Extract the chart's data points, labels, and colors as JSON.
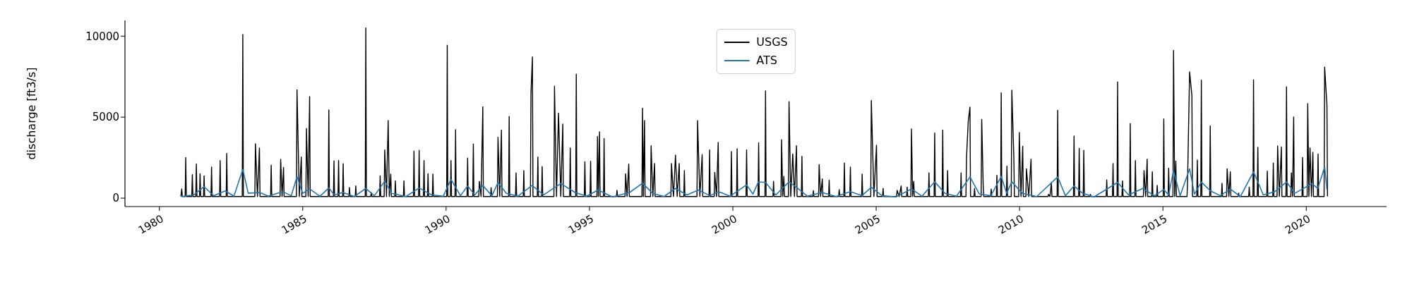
{
  "chart_data": {
    "type": "line",
    "ylabel": "discharge [ft3/s]",
    "xlim": [
      1978.8,
      2022.8
    ],
    "ylim": [
      -520,
      10970
    ],
    "xticks": [
      1980,
      1985,
      1990,
      1995,
      2000,
      2005,
      2010,
      2015,
      2020
    ],
    "yticks": [
      0,
      5000,
      10000
    ],
    "legend": "top",
    "series": [
      {
        "name": "USGS",
        "color": "#000000",
        "x": [
          1980.75,
          1980.78,
          1980.8,
          1980.9,
          1980.92,
          1980.94,
          1981.13,
          1981.15,
          1981.17,
          1981.27,
          1981.29,
          1981.31,
          1981.4,
          1981.42,
          1981.44,
          1981.54,
          1981.56,
          1981.58,
          1981.8,
          1981.82,
          1981.84,
          1982.1,
          1982.12,
          1982.14,
          1982.33,
          1982.35,
          1982.37,
          1982.89,
          1982.91,
          1982.93,
          1983.33,
          1983.35,
          1983.42,
          1983.49,
          1983.51,
          1983.88,
          1983.9,
          1983.92,
          1984.21,
          1984.23,
          1984.28,
          1984.33,
          1984.35,
          1984.78,
          1984.8,
          1984.88,
          1984.95,
          1984.97,
          1985.11,
          1985.13,
          1985.19,
          1985.24,
          1985.26,
          1985.89,
          1985.91,
          1985.93,
          1986.07,
          1986.09,
          1986.11,
          1986.23,
          1986.25,
          1986.27,
          1986.39,
          1986.41,
          1986.43,
          1986.61,
          1986.63,
          1986.65,
          1986.83,
          1986.85,
          1986.87,
          1987.18,
          1987.2,
          1987.22,
          1987.37,
          1987.39,
          1987.41,
          1987.68,
          1987.7,
          1987.72,
          1987.84,
          1987.86,
          1987.92,
          1987.98,
          1988.02,
          1988.07,
          1988.09,
          1988.21,
          1988.23,
          1988.25,
          1988.51,
          1988.53,
          1988.55,
          1988.86,
          1988.88,
          1988.9,
          1989.04,
          1989.06,
          1989.08,
          1989.21,
          1989.23,
          1989.25,
          1989.35,
          1989.37,
          1989.39,
          1989.52,
          1989.54,
          1989.56,
          1990.02,
          1990.04,
          1990.06,
          1990.15,
          1990.17,
          1990.19,
          1990.31,
          1990.33,
          1990.35,
          1990.73,
          1990.75,
          1990.77,
          1990.93,
          1990.95,
          1990.97,
          1991.14,
          1991.16,
          1991.22,
          1991.28,
          1991.3,
          1991.55,
          1991.57,
          1991.59,
          1991.79,
          1991.81,
          1991.87,
          1991.93,
          1991.95,
          1992.18,
          1992.2,
          1992.22,
          1992.42,
          1992.44,
          1992.46,
          1992.69,
          1992.71,
          1992.73,
          1992.94,
          1992.96,
          1993.01,
          1993.03,
          1993.18,
          1993.2,
          1993.22,
          1993.33,
          1993.35,
          1993.37,
          1993.76,
          1993.78,
          1993.85,
          1993.92,
          1994.0,
          1994.07,
          1994.09,
          1994.31,
          1994.33,
          1994.35,
          1994.52,
          1994.54,
          1994.56,
          1994.82,
          1994.84,
          1994.86,
          1995.02,
          1995.04,
          1995.06,
          1995.26,
          1995.28,
          1995.31,
          1995.35,
          1995.37,
          1995.49,
          1995.51,
          1995.53,
          1995.94,
          1995.96,
          1995.98,
          1996.24,
          1996.26,
          1996.31,
          1996.37,
          1996.39,
          1996.83,
          1996.85,
          1996.88,
          1996.92,
          1996.94,
          1997.13,
          1997.15,
          1997.21,
          1997.27,
          1997.29,
          1997.84,
          1997.86,
          1997.93,
          1998.0,
          1998.06,
          1998.13,
          1998.15,
          1998.29,
          1998.31,
          1998.33,
          1998.75,
          1998.77,
          1998.85,
          1998.93,
          1998.95,
          1999.17,
          1999.19,
          1999.21,
          1999.35,
          1999.37,
          1999.43,
          1999.49,
          1999.51,
          1999.93,
          1999.95,
          1999.97,
          2000.13,
          2000.15,
          2000.17,
          2000.46,
          2000.48,
          2000.5,
          2000.88,
          2000.9,
          2000.92,
          2001.12,
          2001.14,
          2001.16,
          2001.4,
          2001.42,
          2001.44,
          2001.68,
          2001.7,
          2001.74,
          2001.78,
          2001.8,
          2001.94,
          2001.96,
          2002.02,
          2002.09,
          2002.15,
          2002.22,
          2002.24,
          2002.39,
          2002.41,
          2002.43,
          2002.79,
          2002.81,
          2002.83,
          2002.99,
          2003.01,
          2003.06,
          2003.12,
          2003.14,
          2003.34,
          2003.36,
          2003.38,
          2003.69,
          2003.71,
          2003.73,
          2003.87,
          2003.89,
          2003.91,
          2004.08,
          2004.1,
          2004.12,
          2004.49,
          2004.51,
          2004.53,
          2004.81,
          2004.83,
          2004.92,
          2005.01,
          2005.03,
          2005.22,
          2005.24,
          2005.26,
          2005.71,
          2005.73,
          2005.8,
          2005.87,
          2005.89,
          2006.06,
          2006.08,
          2006.1,
          2006.21,
          2006.23,
          2006.27,
          2006.31,
          2006.33,
          2006.82,
          2006.84,
          2006.86,
          2007.02,
          2007.04,
          2007.06,
          2007.3,
          2007.32,
          2007.34,
          2007.47,
          2007.49,
          2007.51,
          2007.94,
          2007.96,
          2007.98,
          2008.13,
          2008.15,
          2008.21,
          2008.27,
          2008.29,
          2008.41,
          2008.43,
          2008.45,
          2008.66,
          2008.68,
          2008.73,
          2008.75,
          2008.99,
          2009.01,
          2009.03,
          2009.19,
          2009.21,
          2009.23,
          2009.34,
          2009.36,
          2009.38,
          2009.54,
          2009.56,
          2009.58,
          2009.71,
          2009.73,
          2009.8,
          2009.82,
          2009.97,
          2009.99,
          2010.05,
          2010.11,
          2010.13,
          2010.22,
          2010.24,
          2010.32,
          2010.4,
          2010.42,
          2010.99,
          2011.01,
          2011.06,
          2011.11,
          2011.13,
          2011.31,
          2011.33,
          2011.35,
          2011.88,
          2011.9,
          2011.92,
          2012.06,
          2012.08,
          2012.1,
          2012.22,
          2012.24,
          2012.26,
          2012.45,
          2012.47,
          2012.49,
          2013.02,
          2013.04,
          2013.06,
          2013.24,
          2013.26,
          2013.28,
          2013.4,
          2013.42,
          2013.44,
          2013.57,
          2013.59,
          2013.61,
          2013.84,
          2013.86,
          2013.88,
          2014.02,
          2014.04,
          2014.06,
          2014.32,
          2014.34,
          2014.4,
          2014.45,
          2014.47,
          2014.61,
          2014.63,
          2014.65,
          2014.78,
          2014.8,
          2014.82,
          2015.01,
          2015.03,
          2015.05,
          2015.18,
          2015.2,
          2015.22,
          2015.35,
          2015.37,
          2015.41,
          2015.45,
          2015.47,
          2015.84,
          2015.86,
          2015.93,
          2016.01,
          2016.03,
          2016.18,
          2016.2,
          2016.22,
          2016.32,
          2016.34,
          2016.36,
          2016.63,
          2016.65,
          2016.67,
          2017.04,
          2017.06,
          2017.08,
          2017.22,
          2017.24,
          2017.3,
          2017.35,
          2017.37,
          2017.62,
          2017.64,
          2017.66,
          2017.99,
          2018.01,
          2018.03,
          2018.14,
          2018.16,
          2018.18,
          2018.29,
          2018.31,
          2018.33,
          2018.62,
          2018.64,
          2018.66,
          2018.83,
          2018.85,
          2018.87,
          2018.98,
          2019.0,
          2019.06,
          2019.13,
          2019.15,
          2019.29,
          2019.31,
          2019.33,
          2019.46,
          2019.48,
          2019.52,
          2019.56,
          2019.58,
          2019.85,
          2019.87,
          2019.89,
          2020.03,
          2020.05,
          2020.09,
          2020.13,
          2020.18,
          2020.23,
          2020.25,
          2020.39,
          2020.41,
          2020.43,
          2020.62,
          2020.64,
          2020.72,
          2020.74
        ],
        "values": [
          100,
          570,
          100,
          100,
          2510,
          100,
          100,
          1450,
          100,
          100,
          2110,
          100,
          100,
          1510,
          100,
          100,
          1370,
          100,
          100,
          1920,
          100,
          100,
          2320,
          100,
          100,
          2760,
          100,
          100,
          10100,
          100,
          100,
          3360,
          100,
          3090,
          100,
          100,
          2040,
          100,
          100,
          2400,
          100,
          1900,
          100,
          100,
          6690,
          100,
          2540,
          100,
          100,
          4300,
          100,
          6270,
          100,
          100,
          5450,
          100,
          100,
          2300,
          100,
          100,
          2330,
          100,
          100,
          2130,
          100,
          100,
          660,
          100,
          100,
          750,
          100,
          100,
          10500,
          100,
          100,
          350,
          100,
          100,
          1370,
          100,
          100,
          2980,
          100,
          4790,
          100,
          1480,
          100,
          100,
          1070,
          100,
          100,
          1070,
          100,
          100,
          2910,
          100,
          100,
          2950,
          100,
          100,
          2320,
          100,
          100,
          1510,
          100,
          100,
          1480,
          100,
          100,
          9440,
          100,
          100,
          2320,
          100,
          100,
          4230,
          100,
          100,
          2470,
          100,
          100,
          3350,
          100,
          100,
          1040,
          100,
          5640,
          100,
          100,
          650,
          100,
          100,
          3760,
          100,
          4200,
          100,
          100,
          5040,
          100,
          100,
          1560,
          100,
          100,
          1700,
          100,
          100,
          6470,
          8720,
          100,
          100,
          2540,
          100,
          100,
          1950,
          100,
          100,
          6910,
          100,
          5250,
          100,
          4570,
          100,
          100,
          3100,
          100,
          100,
          7650,
          100,
          100,
          2250,
          100,
          100,
          2280,
          100,
          100,
          3800,
          100,
          4100,
          100,
          100,
          3680,
          100,
          100,
          480,
          100,
          100,
          1510,
          100,
          2100,
          100,
          100,
          5550,
          100,
          4790,
          100,
          100,
          3240,
          100,
          2140,
          100,
          100,
          2140,
          100,
          2660,
          100,
          2140,
          100,
          100,
          1700,
          100,
          100,
          4790,
          100,
          2690,
          100,
          100,
          2980,
          100,
          100,
          1590,
          100,
          3440,
          100,
          100,
          2880,
          100,
          100,
          3050,
          100,
          100,
          2980,
          100,
          100,
          3420,
          100,
          100,
          6620,
          100,
          100,
          1040,
          100,
          100,
          3610,
          100,
          1340,
          100,
          100,
          5960,
          100,
          2730,
          100,
          3240,
          100,
          100,
          2580,
          100,
          100,
          460,
          100,
          100,
          2070,
          100,
          1190,
          100,
          100,
          1100,
          100,
          100,
          530,
          100,
          100,
          2170,
          100,
          100,
          1920,
          100,
          100,
          1480,
          100,
          100,
          6030,
          100,
          3270,
          100,
          100,
          600,
          100,
          100,
          480,
          100,
          750,
          100,
          100,
          680,
          100,
          100,
          4270,
          100,
          1040,
          100,
          100,
          1560,
          100,
          100,
          4020,
          100,
          100,
          4200,
          100,
          100,
          1700,
          100,
          100,
          1560,
          100,
          100,
          2510,
          4740,
          5620,
          100,
          100,
          600,
          100,
          100,
          4860,
          900,
          100,
          100,
          560,
          100,
          100,
          1410,
          100,
          100,
          6500,
          100,
          100,
          1970,
          100,
          100,
          6660,
          2550,
          100,
          100,
          4050,
          100,
          3200,
          100,
          100,
          1810,
          100,
          2410,
          100,
          100,
          230,
          100,
          970,
          100,
          100,
          5420,
          100,
          100,
          3830,
          100,
          100,
          3070,
          100,
          100,
          2950,
          100,
          100,
          230,
          100,
          100,
          1120,
          100,
          100,
          2140,
          100,
          100,
          7180,
          100,
          100,
          1070,
          100,
          100,
          4610,
          100,
          100,
          2320,
          100,
          100,
          1700,
          100,
          2410,
          100,
          100,
          1630,
          100,
          100,
          790,
          100,
          100,
          4890,
          100,
          100,
          1850,
          100,
          100,
          9120,
          100,
          2290,
          100,
          100,
          1070,
          7800,
          6330,
          100,
          100,
          2360,
          100,
          100,
          7280,
          100,
          100,
          4460,
          100,
          100,
          920,
          100,
          100,
          1810,
          100,
          1630,
          100,
          100,
          310,
          100,
          100,
          680,
          100,
          100,
          7310,
          100,
          100,
          3140,
          100,
          100,
          1670,
          100,
          100,
          2170,
          100,
          100,
          3220,
          100,
          3160,
          100,
          100,
          6870,
          100,
          100,
          1560,
          100,
          5010,
          100,
          100,
          2510,
          100,
          100,
          5840,
          100,
          3100,
          100,
          2830,
          100,
          100,
          2730,
          100,
          100,
          8090,
          5740,
          100
        ]
      },
      {
        "name": "ATS",
        "color": "#1f77b4",
        "x": [
          1980.75,
          1981.2,
          1981.56,
          1981.9,
          1982.3,
          1982.6,
          1982.91,
          1983.1,
          1983.5,
          1983.8,
          1984.3,
          1984.6,
          1984.8,
          1985.0,
          1985.24,
          1985.6,
          1985.91,
          1986.1,
          1986.4,
          1986.8,
          1987.2,
          1987.5,
          1987.86,
          1988.1,
          1988.6,
          1989.06,
          1989.5,
          1989.9,
          1990.17,
          1990.5,
          1990.75,
          1991.0,
          1991.28,
          1991.6,
          1991.81,
          1992.1,
          1992.5,
          1993.0,
          1993.4,
          1994.0,
          1994.5,
          1994.9,
          1995.3,
          1995.8,
          1996.4,
          1996.85,
          1997.2,
          1997.6,
          1998.0,
          1998.4,
          1998.8,
          1999.2,
          1999.5,
          1999.9,
          2000.48,
          2000.7,
          2000.89,
          2001.14,
          2001.5,
          2001.96,
          2002.22,
          2002.6,
          2003.1,
          2003.6,
          2004.1,
          2004.5,
          2004.83,
          2005.2,
          2005.7,
          2006.23,
          2006.6,
          2007.04,
          2007.4,
          2007.8,
          2008.27,
          2008.6,
          2009.0,
          2009.36,
          2009.55,
          2009.73,
          2010.1,
          2010.6,
          2011.33,
          2011.6,
          2011.9,
          2012.2,
          2012.6,
          2013.42,
          2013.8,
          2014.3,
          2014.7,
          2015.03,
          2015.2,
          2015.37,
          2015.6,
          2015.93,
          2016.1,
          2016.34,
          2016.65,
          2017.0,
          2017.35,
          2017.7,
          2018.16,
          2018.5,
          2018.9,
          2019.31,
          2019.6,
          2020.2,
          2020.4,
          2020.64,
          2020.72
        ],
        "values": [
          100,
          200,
          700,
          150,
          450,
          120,
          1780,
          300,
          350,
          120,
          400,
          150,
          1340,
          300,
          570,
          120,
          630,
          200,
          350,
          100,
          600,
          150,
          1040,
          300,
          100,
          630,
          200,
          120,
          1160,
          150,
          750,
          200,
          780,
          150,
          970,
          300,
          120,
          780,
          200,
          900,
          350,
          120,
          500,
          80,
          350,
          920,
          300,
          100,
          600,
          200,
          500,
          150,
          400,
          120,
          820,
          250,
          1000,
          970,
          200,
          1010,
          670,
          120,
          350,
          100,
          400,
          150,
          670,
          150,
          80,
          570,
          120,
          1010,
          300,
          120,
          1310,
          250,
          150,
          1340,
          300,
          1010,
          300,
          100,
          1310,
          150,
          750,
          300,
          80,
          970,
          200,
          600,
          150,
          530,
          200,
          1700,
          150,
          1810,
          250,
          1000,
          460,
          150,
          560,
          100,
          1630,
          200,
          400,
          1000,
          300,
          900,
          600,
          1920,
          530
        ]
      }
    ]
  }
}
